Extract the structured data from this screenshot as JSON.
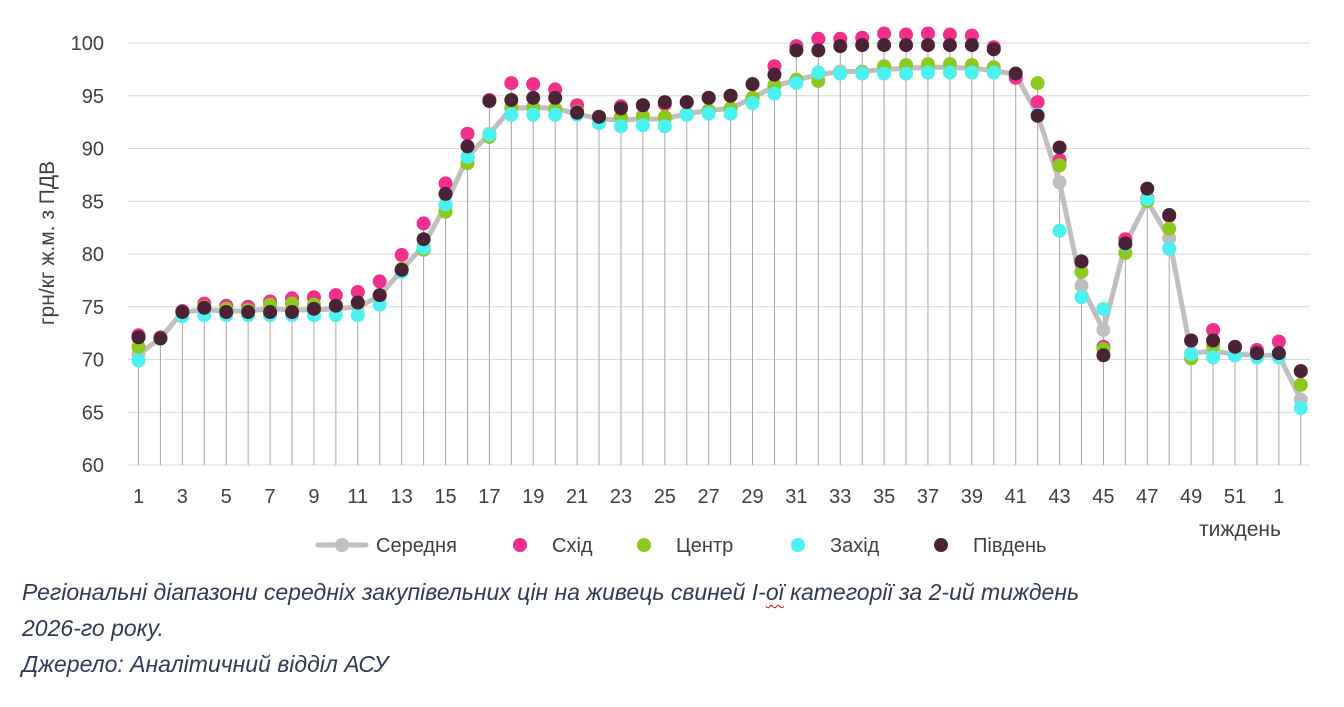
{
  "chart_data": {
    "type": "scatter",
    "ylabel": "грн/кг ж.м. з ПДВ",
    "xlabel": "тиждень",
    "ylim": [
      60,
      100
    ],
    "yticks": [
      60,
      65,
      70,
      75,
      80,
      85,
      90,
      95,
      100
    ],
    "grid": true,
    "legend_position": "bottom",
    "x_tick_labels": [
      "1",
      "",
      "3",
      "",
      "5",
      "",
      "7",
      "",
      "9",
      "",
      "11",
      "",
      "13",
      "",
      "15",
      "",
      "17",
      "",
      "19",
      "",
      "21",
      "",
      "23",
      "",
      "25",
      "",
      "27",
      "",
      "29",
      "",
      "31",
      "",
      "33",
      "",
      "35",
      "",
      "37",
      "",
      "39",
      "",
      "41",
      "",
      "43",
      "",
      "45",
      "",
      "47",
      "",
      "49",
      "",
      "51",
      "",
      "1",
      ""
    ],
    "series": [
      {
        "name": "Середня",
        "color": "#bfbfbf",
        "style": "line-marker",
        "values": [
          70.5,
          72.0,
          74.5,
          74.7,
          74.6,
          74.6,
          74.8,
          74.7,
          74.7,
          74.8,
          75.0,
          76.0,
          78.5,
          80.8,
          84.6,
          89.2,
          91.4,
          93.8,
          93.9,
          93.8,
          93.3,
          92.8,
          92.7,
          92.8,
          92.8,
          93.3,
          93.6,
          93.8,
          94.8,
          95.9,
          96.5,
          97.0,
          97.3,
          97.3,
          97.5,
          97.6,
          97.7,
          97.7,
          97.6,
          97.4,
          97.0,
          93.2,
          86.8,
          77.0,
          72.8,
          80.9,
          85.0,
          81.5,
          70.6,
          70.8,
          70.5,
          70.4,
          70.4,
          66.2
        ]
      },
      {
        "name": "Схід",
        "color": "#f0308c",
        "style": "marker",
        "values": [
          72.3,
          72.1,
          74.6,
          75.3,
          75.1,
          75.0,
          75.5,
          75.8,
          75.9,
          76.1,
          76.4,
          77.4,
          79.9,
          82.9,
          86.7,
          91.4,
          94.6,
          96.2,
          96.1,
          95.6,
          94.1,
          93.0,
          94.0,
          94.1,
          94.2,
          94.4,
          94.8,
          95.0,
          96.1,
          97.8,
          99.7,
          100.4,
          100.4,
          100.5,
          100.9,
          100.8,
          100.9,
          100.8,
          100.7,
          99.6,
          96.7,
          94.4,
          88.9,
          79.2,
          71.2,
          81.4,
          85.3,
          83.6,
          71.8,
          72.8,
          71.2,
          70.9,
          71.7,
          68.9
        ]
      },
      {
        "name": "Центр",
        "color": "#8cc81e",
        "style": "marker",
        "values": [
          71.2,
          72.0,
          74.5,
          75.0,
          74.8,
          74.7,
          75.2,
          75.3,
          75.2,
          75.1,
          75.4,
          76.1,
          78.6,
          80.4,
          84.0,
          88.6,
          91.1,
          93.9,
          93.9,
          93.7,
          93.5,
          93.0,
          93.0,
          93.1,
          93.0,
          93.3,
          93.6,
          93.8,
          94.8,
          96.0,
          96.5,
          96.4,
          97.1,
          97.2,
          97.8,
          97.9,
          98.0,
          98.0,
          97.9,
          97.7,
          97.1,
          96.2,
          88.4,
          78.3,
          71.0,
          80.1,
          85.0,
          82.4,
          70.1,
          71.3,
          70.4,
          70.5,
          70.5,
          67.6
        ]
      },
      {
        "name": "Захід",
        "color": "#4cf2f2",
        "style": "marker",
        "values": [
          69.9,
          72.0,
          74.1,
          74.2,
          74.2,
          74.2,
          74.2,
          74.2,
          74.2,
          74.2,
          74.2,
          75.2,
          78.3,
          80.6,
          84.7,
          89.2,
          91.3,
          93.2,
          93.2,
          93.2,
          93.2,
          92.4,
          92.1,
          92.2,
          92.1,
          93.2,
          93.3,
          93.3,
          94.3,
          95.2,
          96.2,
          97.2,
          97.1,
          97.1,
          97.1,
          97.1,
          97.2,
          97.2,
          97.2,
          97.2,
          97.1,
          93.2,
          82.2,
          75.9,
          74.8,
          80.9,
          85.2,
          80.5,
          70.5,
          70.2,
          70.4,
          70.2,
          70.2,
          65.4
        ]
      },
      {
        "name": "Південь",
        "color": "#4a2436",
        "style": "marker",
        "values": [
          72.1,
          72.0,
          74.5,
          74.9,
          74.5,
          74.5,
          74.5,
          74.5,
          74.8,
          75.1,
          75.4,
          76.1,
          78.5,
          81.4,
          85.7,
          90.2,
          94.5,
          94.6,
          94.8,
          94.8,
          93.4,
          93.0,
          93.8,
          94.1,
          94.4,
          94.4,
          94.8,
          95.0,
          96.1,
          97.0,
          99.3,
          99.3,
          99.7,
          99.8,
          99.8,
          99.8,
          99.8,
          99.8,
          99.8,
          99.4,
          97.1,
          93.1,
          90.1,
          79.3,
          70.4,
          81.0,
          86.2,
          83.7,
          71.8,
          71.8,
          71.2,
          70.6,
          70.6,
          68.9
        ]
      }
    ]
  },
  "caption": {
    "line1_part1": "Регіональні діапазони середніх закупівельних цін на живець свиней І-",
    "line1_squiggle": "ої",
    "line1_part2": " категорії за 2-ий тиждень",
    "line2": "2026-го року.",
    "line3": "Джерело: Аналітичний відділ АСУ"
  }
}
